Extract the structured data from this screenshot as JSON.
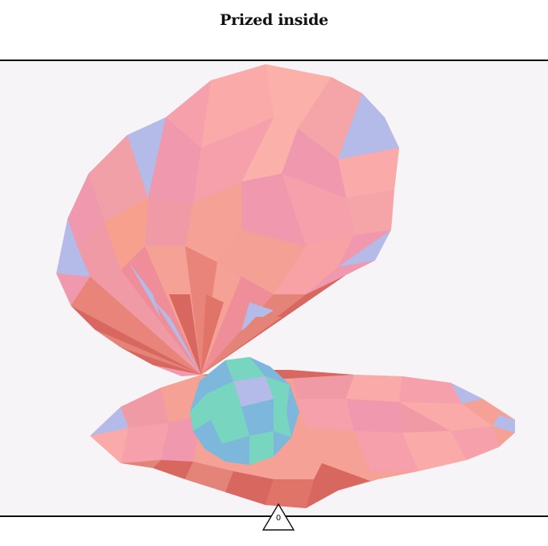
{
  "header": {
    "title": "Prized inside"
  },
  "stage": {
    "background": "#f6f4f6",
    "subject": "low-poly-oyster-shell-with-pearl",
    "palette": {
      "pink": "#ef98ae",
      "light_pink": "#fbaaaa",
      "salmon": "#f5a196",
      "coral_dark": "#d8675f",
      "coral_mid": "#e48478",
      "lavender": "#b4bbe8",
      "pearl_blue": "#7eb7dc",
      "pearl_green": "#78d5c0"
    }
  },
  "footer": {
    "counter_value": "0",
    "counter_icon": "triangle-icon"
  }
}
